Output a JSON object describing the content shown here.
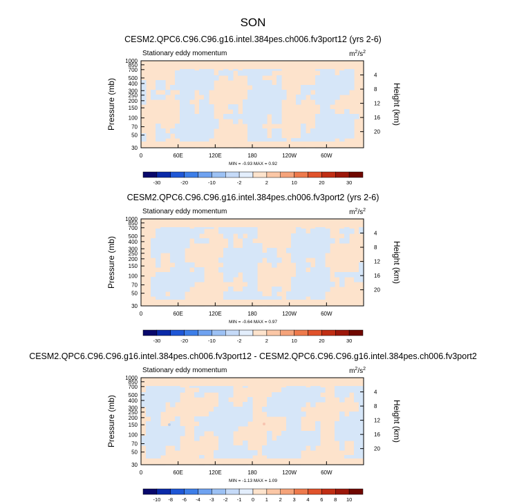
{
  "figure": {
    "title": "SON"
  },
  "colors": {
    "pos_fill": "#fde3cc",
    "neg_fill": "#d6e6f8",
    "pos_spot": "#f7c4b0",
    "neg_spot": "#b9cde8"
  },
  "chart_data": [
    {
      "type": "heatmap",
      "title": "CESM2.QPC6.C96.C96.g16.intel.384pes.ch006.fv3port12 (yrs 2-6)",
      "subtitle_left": "Stationary eddy momentum",
      "units": "m²/s²",
      "units_base": "m",
      "units_sup1": "2",
      "units_mid": "/s",
      "units_sup2": "2",
      "ylabel": "Pressure (mb)",
      "ylabel_right": "Height (km)",
      "x_ticks": [
        "0",
        "60E",
        "120E",
        "180",
        "120W",
        "60W"
      ],
      "y_ticks": [
        "30",
        "50",
        "70",
        "100",
        "150",
        "200",
        "250",
        "300",
        "400",
        "500",
        "700",
        "850",
        "1000"
      ],
      "y_ticks_right": [
        "20",
        "16",
        "12",
        "8",
        "4"
      ],
      "ylim": [
        1000,
        30
      ],
      "stats": "MIN = -0.93  MAX =  0.92",
      "min": -0.93,
      "max": 0.92,
      "colorbar_labels": [
        "-30",
        "-20",
        "-10",
        "-2",
        "2",
        "10",
        "20",
        "30"
      ],
      "colorbar_colors": [
        "#08086b",
        "#0a2aa8",
        "#1f57d6",
        "#3d7ee8",
        "#6fa2f0",
        "#9cc1f4",
        "#c5daf8",
        "#e3eefc",
        "#fde3cc",
        "#fbc7a6",
        "#f5a37a",
        "#ee7a4c",
        "#e0522b",
        "#c02e14",
        "#9c170a",
        "#700800"
      ]
    },
    {
      "type": "heatmap",
      "title": "CESM2.QPC6.C96.C96.g16.intel.384pes.ch006.fv3port2 (yrs 2-6)",
      "subtitle_left": "Stationary eddy momentum",
      "units": "m²/s²",
      "units_base": "m",
      "units_sup1": "2",
      "units_mid": "/s",
      "units_sup2": "2",
      "ylabel": "Pressure (mb)",
      "ylabel_right": "Height (km)",
      "x_ticks": [
        "0",
        "60E",
        "120E",
        "180",
        "120W",
        "60W"
      ],
      "y_ticks": [
        "30",
        "50",
        "70",
        "100",
        "150",
        "200",
        "250",
        "300",
        "400",
        "500",
        "700",
        "850",
        "1000"
      ],
      "y_ticks_right": [
        "20",
        "16",
        "12",
        "8",
        "4"
      ],
      "ylim": [
        1000,
        30
      ],
      "stats": "MIN = -0.64  MAX =  0.97",
      "min": -0.64,
      "max": 0.97,
      "colorbar_labels": [
        "-30",
        "-20",
        "-10",
        "-2",
        "2",
        "10",
        "20",
        "30"
      ],
      "colorbar_colors": [
        "#08086b",
        "#0a2aa8",
        "#1f57d6",
        "#3d7ee8",
        "#6fa2f0",
        "#9cc1f4",
        "#c5daf8",
        "#e3eefc",
        "#fde3cc",
        "#fbc7a6",
        "#f5a37a",
        "#ee7a4c",
        "#e0522b",
        "#c02e14",
        "#9c170a",
        "#700800"
      ]
    },
    {
      "type": "heatmap",
      "title": "CESM2.QPC6.C96.C96.g16.intel.384pes.ch006.fv3port12 - CESM2.QPC6.C96.C96.g16.intel.384pes.ch006.fv3port2",
      "subtitle_left": "Stationary eddy momentum",
      "units": "m²/s²",
      "units_base": "m",
      "units_sup1": "2",
      "units_mid": "/s",
      "units_sup2": "2",
      "ylabel": "Pressure (mb)",
      "ylabel_right": "Height (km)",
      "x_ticks": [
        "0",
        "60E",
        "120E",
        "180",
        "120W",
        "60W"
      ],
      "y_ticks": [
        "30",
        "50",
        "70",
        "100",
        "150",
        "200",
        "250",
        "300",
        "400",
        "500",
        "700",
        "850",
        "1000"
      ],
      "y_ticks_right": [
        "20",
        "16",
        "12",
        "8",
        "4"
      ],
      "ylim": [
        1000,
        30
      ],
      "stats": "MIN = -1.13  MAX =  1.09",
      "min": -1.13,
      "max": 1.09,
      "colorbar_labels": [
        "-10",
        "-8",
        "-6",
        "-4",
        "-3",
        "-2",
        "-1",
        "0",
        "1",
        "2",
        "3",
        "4",
        "6",
        "8",
        "10"
      ],
      "colorbar_colors": [
        "#08086b",
        "#0a2aa8",
        "#1f57d6",
        "#3d7ee8",
        "#6fa2f0",
        "#9cc1f4",
        "#c5daf8",
        "#e3eefc",
        "#fde3cc",
        "#fbc7a6",
        "#f5a37a",
        "#ee7a4c",
        "#e0522b",
        "#c02e14",
        "#9c170a",
        "#700800"
      ]
    }
  ]
}
